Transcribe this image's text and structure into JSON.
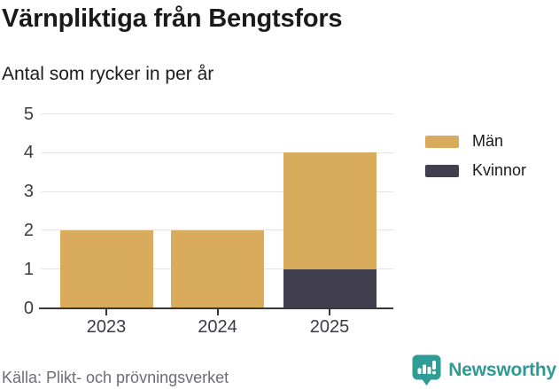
{
  "header": {
    "title": "Värnpliktiga från Bengtsfors",
    "subtitle": "Antal som rycker in per år"
  },
  "chart_data": {
    "type": "bar",
    "stacked": true,
    "title": "Värnpliktiga från Bengtsfors",
    "subtitle": "Antal som rycker in per år",
    "categories": [
      "2023",
      "2024",
      "2025"
    ],
    "series": [
      {
        "name": "Män",
        "color": "#d9ab5c",
        "values": [
          2,
          2,
          3
        ]
      },
      {
        "name": "Kvinnor",
        "color": "#413f4d",
        "values": [
          0,
          0,
          1
        ]
      }
    ],
    "stack_bottom_to_top": [
      "Kvinnor",
      "Män"
    ],
    "totals": [
      2,
      2,
      4
    ],
    "ylim": [
      0,
      5
    ],
    "yticks": [
      0,
      1,
      2,
      3,
      4,
      5
    ],
    "grid": true,
    "legend_position": "right"
  },
  "footer": {
    "source": "Källa: Plikt- och prövningsverket",
    "brand": "Newsworthy"
  },
  "colors": {
    "man": "#d9ab5c",
    "kvinnor": "#413f4d",
    "axis": "#37373f",
    "gridline": "#e4e4e6",
    "brand_teal": "#2d9a94"
  }
}
